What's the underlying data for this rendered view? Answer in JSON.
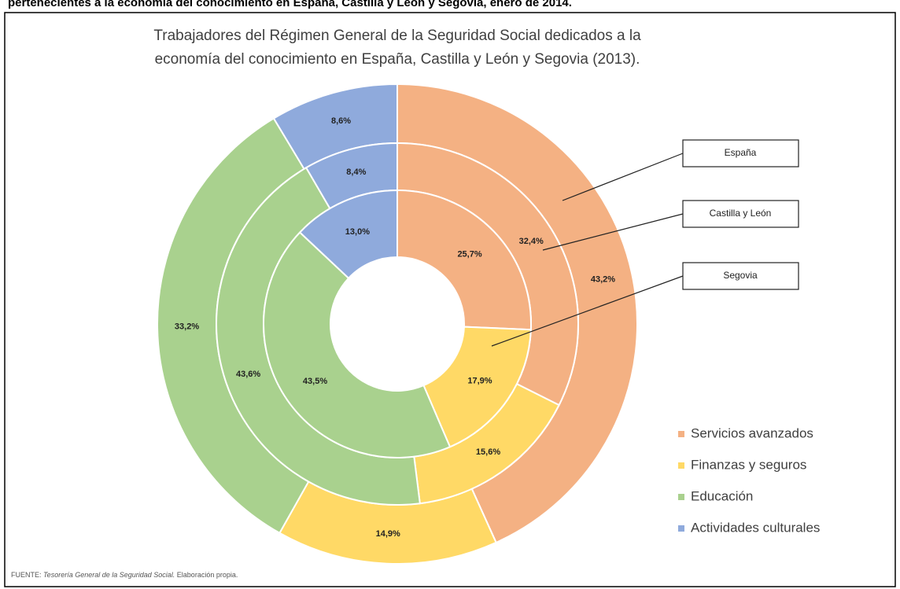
{
  "caption": "pertenecientes a la economía del conocimiento en España, Castilla y León y Segovia, enero de 2014.",
  "chart_data": {
    "type": "donut",
    "title": [
      "Trabajadores del Régimen General  de la Seguridad Social dedicados a la",
      "economía del conocimiento en España, Castilla y León y Segovia (2013)."
    ],
    "categories": [
      "Servicios avanzados",
      "Finanzas y seguros",
      "Educación",
      "Actividades culturales"
    ],
    "colors": [
      "#f4b183",
      "#ffd966",
      "#a9d18e",
      "#8faadc"
    ],
    "series": [
      {
        "name": "España",
        "values": [
          43.2,
          14.9,
          33.2,
          8.6
        ],
        "value_labels": [
          "43,2%",
          "14,9%",
          "33,2%",
          "8,6%"
        ]
      },
      {
        "name": "Castilla y León",
        "values": [
          32.4,
          15.6,
          43.6,
          8.4
        ],
        "value_labels": [
          "32,4%",
          "15,6%",
          "43,6%",
          "8,4%"
        ]
      },
      {
        "name": "Segovia",
        "values": [
          25.7,
          17.9,
          43.5,
          13.0
        ],
        "value_labels": [
          "25,7%",
          "17,9%",
          "43,5%",
          "13,0%"
        ]
      }
    ],
    "legend": "right"
  },
  "source": {
    "prefix": "FUENTE: ",
    "italic": "Tesorería General de la Seguridad Social.",
    "suffix": " Elaboración propia."
  }
}
